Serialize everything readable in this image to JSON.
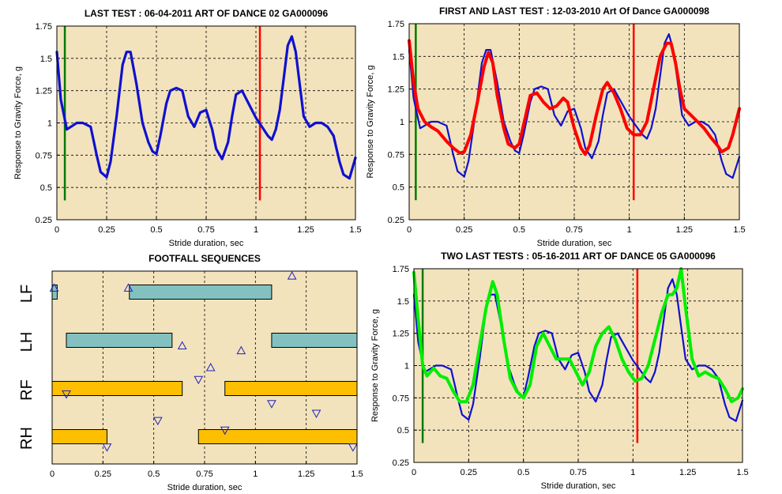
{
  "colors": {
    "axes_bg": "#f2e3bc",
    "blue": "#1010d0",
    "red": "#ff0000",
    "green": "#00ee00",
    "marker_green": "#007a00",
    "bar_lf_lh": "#83c1c0",
    "bar_rf_rh": "#fdbf00",
    "triangle": "#2020c0"
  },
  "chart_data": [
    {
      "id": "p1",
      "type": "line",
      "title": "LAST TEST : 06-04-2011 ART OF DANCE 02 GA000096",
      "xlabel": "Stride duration, sec",
      "ylabel": "Response to Gravity Force, g",
      "xlim": [
        0,
        1.5
      ],
      "ylim": [
        0.25,
        1.75
      ],
      "xticks": [
        "0",
        "0.25",
        "0.5",
        "0.75",
        "1",
        "1.25",
        "1.5"
      ],
      "yticks": [
        "0.25",
        "0.5",
        "0.75",
        "1",
        "1.25",
        "1.5",
        "1.75"
      ],
      "grid": true,
      "vlines": [
        {
          "x": 0.04,
          "y": [
            0.4,
            1.75
          ],
          "color": "marker_green"
        },
        {
          "x": 1.02,
          "y": [
            0.4,
            1.75
          ],
          "color": "red"
        }
      ],
      "series": [
        {
          "color": "blue",
          "x": [
            0,
            0.02,
            0.05,
            0.08,
            0.1,
            0.13,
            0.17,
            0.2,
            0.22,
            0.25,
            0.27,
            0.3,
            0.33,
            0.35,
            0.37,
            0.4,
            0.43,
            0.46,
            0.48,
            0.5,
            0.52,
            0.55,
            0.57,
            0.6,
            0.63,
            0.66,
            0.69,
            0.72,
            0.75,
            0.78,
            0.8,
            0.83,
            0.86,
            0.88,
            0.9,
            0.93,
            0.96,
            1.0,
            1.03,
            1.06,
            1.08,
            1.1,
            1.12,
            1.14,
            1.16,
            1.18,
            1.2,
            1.22,
            1.24,
            1.27,
            1.3,
            1.33,
            1.36,
            1.39,
            1.42,
            1.44,
            1.47,
            1.5
          ],
          "y": [
            1.55,
            1.18,
            0.95,
            0.98,
            1.0,
            1.0,
            0.97,
            0.75,
            0.62,
            0.58,
            0.7,
            1.05,
            1.45,
            1.55,
            1.55,
            1.3,
            1.0,
            0.85,
            0.78,
            0.76,
            0.9,
            1.15,
            1.25,
            1.27,
            1.25,
            1.05,
            0.97,
            1.08,
            1.1,
            0.95,
            0.8,
            0.72,
            0.85,
            1.05,
            1.22,
            1.25,
            1.16,
            1.04,
            0.97,
            0.9,
            0.87,
            0.95,
            1.1,
            1.35,
            1.6,
            1.67,
            1.55,
            1.3,
            1.05,
            0.97,
            1.0,
            1.0,
            0.97,
            0.9,
            0.7,
            0.6,
            0.57,
            0.73
          ]
        }
      ]
    },
    {
      "id": "p2",
      "type": "line",
      "title": "FIRST AND LAST TEST : 12-03-2010 Art Of Dance GA000098",
      "xlabel": "Stride duration, sec",
      "ylabel": "Response to Gravity Force, g",
      "xlim": [
        0,
        1.5
      ],
      "ylim": [
        0.25,
        1.75
      ],
      "xticks": [
        "0",
        "0.25",
        "0.5",
        "0.75",
        "1",
        "1.25",
        "1.5"
      ],
      "yticks": [
        "0.25",
        "0.5",
        "0.75",
        "1",
        "1.25",
        "1.5",
        "1.75"
      ],
      "grid": true,
      "vlines": [
        {
          "x": 0.03,
          "y": [
            0.4,
            1.75
          ],
          "color": "marker_green"
        },
        {
          "x": 1.02,
          "y": [
            0.4,
            1.75
          ],
          "color": "red"
        }
      ],
      "series": [
        {
          "color": "blue",
          "x": [
            0,
            0.02,
            0.05,
            0.08,
            0.1,
            0.13,
            0.17,
            0.2,
            0.22,
            0.25,
            0.27,
            0.3,
            0.33,
            0.35,
            0.37,
            0.4,
            0.43,
            0.46,
            0.48,
            0.5,
            0.52,
            0.55,
            0.57,
            0.6,
            0.63,
            0.66,
            0.69,
            0.72,
            0.75,
            0.78,
            0.8,
            0.83,
            0.86,
            0.88,
            0.9,
            0.93,
            0.96,
            1.0,
            1.03,
            1.06,
            1.08,
            1.1,
            1.12,
            1.14,
            1.16,
            1.18,
            1.2,
            1.22,
            1.24,
            1.27,
            1.3,
            1.33,
            1.36,
            1.39,
            1.42,
            1.44,
            1.47,
            1.5
          ],
          "y": [
            1.55,
            1.18,
            0.95,
            0.98,
            1.0,
            1.0,
            0.97,
            0.75,
            0.62,
            0.58,
            0.7,
            1.05,
            1.45,
            1.55,
            1.55,
            1.3,
            1.0,
            0.85,
            0.78,
            0.76,
            0.9,
            1.15,
            1.25,
            1.27,
            1.25,
            1.05,
            0.97,
            1.08,
            1.1,
            0.95,
            0.8,
            0.72,
            0.85,
            1.05,
            1.22,
            1.25,
            1.16,
            1.04,
            0.97,
            0.9,
            0.87,
            0.95,
            1.1,
            1.35,
            1.6,
            1.67,
            1.55,
            1.3,
            1.05,
            0.97,
            1.0,
            1.0,
            0.97,
            0.9,
            0.7,
            0.6,
            0.57,
            0.73
          ]
        },
        {
          "color": "red",
          "x": [
            0,
            0.02,
            0.04,
            0.07,
            0.1,
            0.13,
            0.17,
            0.2,
            0.23,
            0.25,
            0.28,
            0.31,
            0.34,
            0.36,
            0.38,
            0.4,
            0.43,
            0.45,
            0.48,
            0.5,
            0.53,
            0.55,
            0.58,
            0.61,
            0.64,
            0.67,
            0.7,
            0.72,
            0.75,
            0.78,
            0.8,
            0.82,
            0.85,
            0.88,
            0.9,
            0.93,
            0.96,
            0.99,
            1.02,
            1.05,
            1.08,
            1.11,
            1.14,
            1.17,
            1.19,
            1.21,
            1.23,
            1.25,
            1.28,
            1.31,
            1.34,
            1.37,
            1.4,
            1.42,
            1.45,
            1.47,
            1.5
          ],
          "y": [
            1.62,
            1.3,
            1.1,
            1.0,
            0.96,
            0.93,
            0.85,
            0.8,
            0.76,
            0.77,
            0.9,
            1.15,
            1.42,
            1.53,
            1.45,
            1.2,
            0.95,
            0.83,
            0.8,
            0.83,
            1.05,
            1.2,
            1.22,
            1.15,
            1.1,
            1.12,
            1.18,
            1.15,
            0.95,
            0.8,
            0.75,
            0.82,
            1.05,
            1.25,
            1.3,
            1.22,
            1.1,
            0.95,
            0.9,
            0.9,
            1.0,
            1.25,
            1.5,
            1.6,
            1.6,
            1.45,
            1.25,
            1.1,
            1.05,
            1.0,
            0.95,
            0.88,
            0.82,
            0.77,
            0.8,
            0.9,
            1.1
          ]
        }
      ]
    },
    {
      "id": "p3",
      "type": "gantt",
      "title": "FOOTFALL SEQUENCES",
      "xlabel": "Stride duration, sec",
      "xlim": [
        0,
        1.5
      ],
      "xticks": [
        "0",
        "0.25",
        "0.5",
        "0.75",
        "1",
        "1.25",
        "1.5"
      ],
      "grid": true,
      "rows": [
        "LF",
        "LH",
        "RF",
        "RH"
      ],
      "bars": [
        {
          "row": 0,
          "x0": 0.0,
          "x1": 0.025,
          "color": "bar_lf_lh"
        },
        {
          "row": 0,
          "x0": 0.38,
          "x1": 1.08,
          "color": "bar_lf_lh"
        },
        {
          "row": 1,
          "x0": 0.07,
          "x1": 0.59,
          "color": "bar_lf_lh"
        },
        {
          "row": 1,
          "x0": 1.08,
          "x1": 1.5,
          "color": "bar_lf_lh"
        },
        {
          "row": 2,
          "x0": 0.0,
          "x1": 0.64,
          "color": "bar_rf_rh"
        },
        {
          "row": 2,
          "x0": 0.85,
          "x1": 1.5,
          "color": "bar_rf_rh"
        },
        {
          "row": 3,
          "x0": 0.0,
          "x1": 0.27,
          "color": "bar_rf_rh"
        },
        {
          "row": 3,
          "x0": 0.72,
          "x1": 1.5,
          "color": "bar_rf_rh"
        }
      ],
      "markers": [
        {
          "x": 0.01,
          "level": 0.35,
          "dir": "up"
        },
        {
          "x": 0.375,
          "level": 0.35,
          "dir": "up"
        },
        {
          "x": 1.18,
          "level": 0.1,
          "dir": "up"
        },
        {
          "x": 0.64,
          "level": 1.55,
          "dir": "up"
        },
        {
          "x": 0.93,
          "level": 1.65,
          "dir": "up"
        },
        {
          "x": 0.78,
          "level": 2.0,
          "dir": "up"
        },
        {
          "x": 0.72,
          "level": 2.25,
          "dir": "down"
        },
        {
          "x": 0.07,
          "level": 2.55,
          "dir": "down"
        },
        {
          "x": 1.08,
          "level": 2.75,
          "dir": "down"
        },
        {
          "x": 1.3,
          "level": 2.95,
          "dir": "down"
        },
        {
          "x": 0.52,
          "level": 3.1,
          "dir": "down"
        },
        {
          "x": 0.85,
          "level": 3.3,
          "dir": "down"
        },
        {
          "x": 0.27,
          "level": 3.65,
          "dir": "down"
        },
        {
          "x": 1.48,
          "level": 3.65,
          "dir": "down"
        }
      ]
    },
    {
      "id": "p4",
      "type": "line",
      "title": "TWO LAST TESTS : 05-16-2011 ART OF DANCE 05 GA000096",
      "xlabel": "Stride duration, sec",
      "ylabel": "Response to Gravity Force, g",
      "xlim": [
        0,
        1.5
      ],
      "ylim": [
        0.25,
        1.75
      ],
      "xticks": [
        "0",
        "0.25",
        "0.5",
        "0.75",
        "1",
        "1.25",
        "1.5"
      ],
      "yticks": [
        "0.25",
        "0.5",
        "0.75",
        "1",
        "1.25",
        "1.5",
        "1.75"
      ],
      "grid": true,
      "vlines": [
        {
          "x": 0.04,
          "y": [
            0.4,
            1.75
          ],
          "color": "marker_green"
        },
        {
          "x": 1.02,
          "y": [
            0.4,
            1.75
          ],
          "color": "red"
        }
      ],
      "series": [
        {
          "color": "blue",
          "x": [
            0,
            0.02,
            0.05,
            0.08,
            0.1,
            0.13,
            0.17,
            0.2,
            0.22,
            0.25,
            0.27,
            0.3,
            0.33,
            0.35,
            0.37,
            0.4,
            0.43,
            0.46,
            0.48,
            0.5,
            0.52,
            0.55,
            0.57,
            0.6,
            0.63,
            0.66,
            0.69,
            0.72,
            0.75,
            0.78,
            0.8,
            0.83,
            0.86,
            0.88,
            0.9,
            0.93,
            0.96,
            1.0,
            1.03,
            1.06,
            1.08,
            1.1,
            1.12,
            1.14,
            1.16,
            1.18,
            1.2,
            1.22,
            1.24,
            1.27,
            1.3,
            1.33,
            1.36,
            1.39,
            1.42,
            1.44,
            1.47,
            1.5
          ],
          "y": [
            1.55,
            1.18,
            0.95,
            0.98,
            1.0,
            1.0,
            0.97,
            0.75,
            0.62,
            0.58,
            0.7,
            1.05,
            1.45,
            1.55,
            1.55,
            1.3,
            1.0,
            0.85,
            0.78,
            0.76,
            0.9,
            1.15,
            1.25,
            1.27,
            1.25,
            1.05,
            0.97,
            1.08,
            1.1,
            0.95,
            0.8,
            0.72,
            0.85,
            1.05,
            1.22,
            1.25,
            1.16,
            1.04,
            0.97,
            0.9,
            0.87,
            0.95,
            1.1,
            1.35,
            1.6,
            1.67,
            1.55,
            1.3,
            1.05,
            0.97,
            1.0,
            1.0,
            0.97,
            0.9,
            0.7,
            0.6,
            0.57,
            0.73
          ]
        },
        {
          "color": "green",
          "x": [
            0,
            0.02,
            0.04,
            0.06,
            0.09,
            0.12,
            0.15,
            0.18,
            0.21,
            0.24,
            0.27,
            0.3,
            0.33,
            0.36,
            0.38,
            0.41,
            0.44,
            0.47,
            0.5,
            0.53,
            0.56,
            0.59,
            0.62,
            0.65,
            0.68,
            0.71,
            0.74,
            0.77,
            0.8,
            0.83,
            0.86,
            0.89,
            0.92,
            0.95,
            0.98,
            1.01,
            1.04,
            1.07,
            1.1,
            1.13,
            1.16,
            1.18,
            1.2,
            1.22,
            1.24,
            1.27,
            1.3,
            1.33,
            1.36,
            1.39,
            1.42,
            1.45,
            1.48,
            1.5
          ],
          "y": [
            1.72,
            1.35,
            1.0,
            0.92,
            0.98,
            0.92,
            0.9,
            0.8,
            0.72,
            0.72,
            0.85,
            1.15,
            1.45,
            1.65,
            1.55,
            1.2,
            0.9,
            0.8,
            0.75,
            0.85,
            1.15,
            1.25,
            1.15,
            1.05,
            1.05,
            1.05,
            0.95,
            0.85,
            0.95,
            1.15,
            1.25,
            1.3,
            1.2,
            1.05,
            0.95,
            0.88,
            0.9,
            1.0,
            1.2,
            1.4,
            1.55,
            1.55,
            1.6,
            1.75,
            1.45,
            1.05,
            0.92,
            0.95,
            0.92,
            0.9,
            0.82,
            0.72,
            0.75,
            0.82
          ]
        }
      ]
    }
  ]
}
